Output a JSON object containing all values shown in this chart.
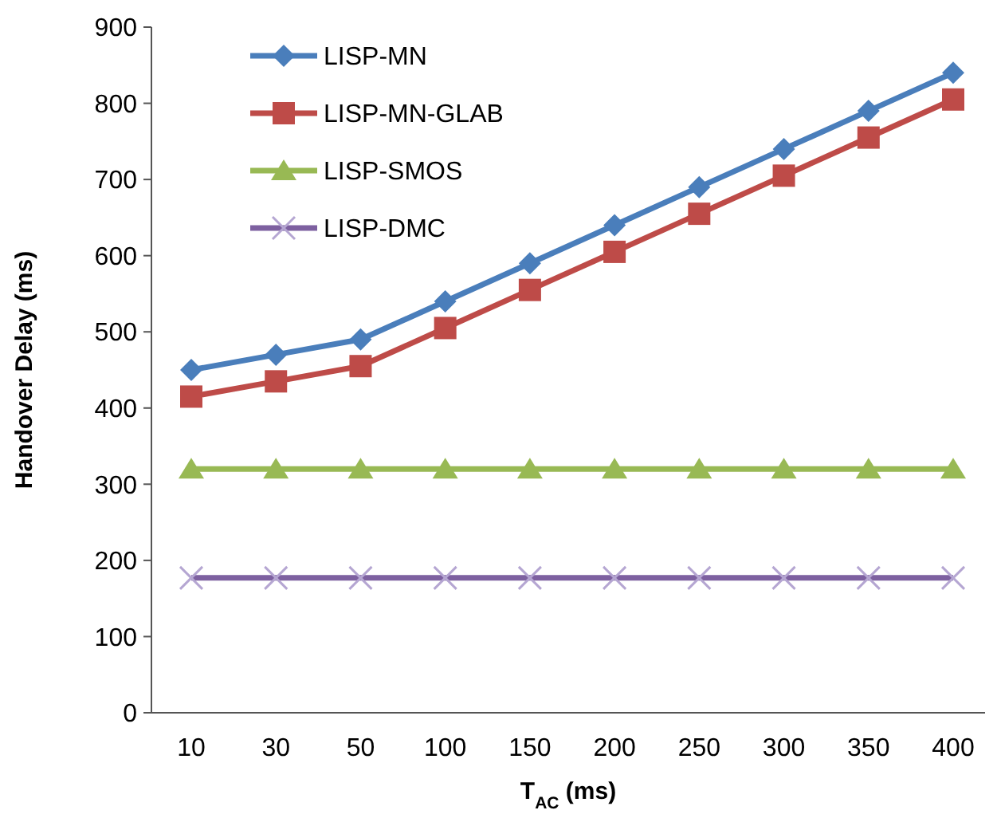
{
  "chart_data": {
    "type": "line",
    "xlabel": "T$_{AC}$ (ms)",
    "ylabel": "Handover Delay (ms)",
    "categories": [
      "10",
      "30",
      "50",
      "100",
      "150",
      "200",
      "250",
      "300",
      "350",
      "400"
    ],
    "ylim": [
      0,
      900
    ],
    "yticks": [
      0,
      100,
      200,
      300,
      400,
      500,
      600,
      700,
      800,
      900
    ],
    "grid": false,
    "legend": "top left",
    "line_style": "solid",
    "series": [
      {
        "name": "LISP-MN",
        "color": "#4a7ebb",
        "marker": "diamond",
        "values": [
          450,
          470,
          490,
          540,
          590,
          640,
          690,
          740,
          790,
          840
        ]
      },
      {
        "name": "LISP-MN-GLAB",
        "color": "#be4b48",
        "marker": "square",
        "values": [
          415,
          435,
          455,
          505,
          555,
          605,
          655,
          705,
          755,
          805
        ]
      },
      {
        "name": "LISP-SMOS",
        "color": "#98b954",
        "marker": "triangle",
        "values": [
          320,
          320,
          320,
          320,
          320,
          320,
          320,
          320,
          320,
          320
        ]
      },
      {
        "name": "LISP-DMC",
        "color": "#7d60a0",
        "marker": "cross",
        "values": [
          177,
          177,
          177,
          177,
          177,
          177,
          177,
          177,
          177,
          177
        ]
      }
    ]
  }
}
